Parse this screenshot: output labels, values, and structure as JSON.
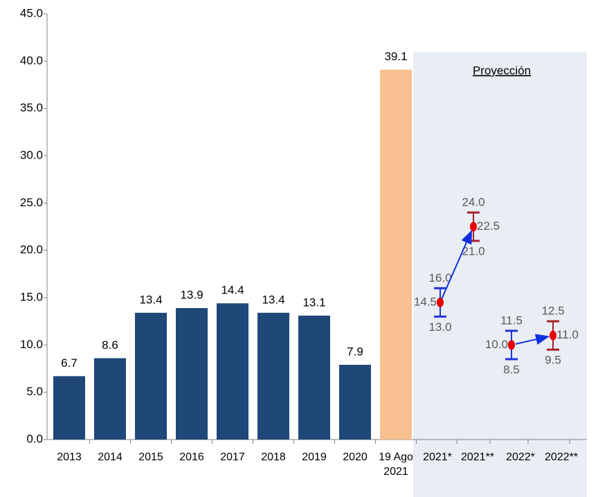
{
  "chart_data": {
    "type": "bar",
    "categories": [
      "2013",
      "2014",
      "2015",
      "2016",
      "2017",
      "2018",
      "2019",
      "2020",
      "19 Ago 2021"
    ],
    "values": [
      6.7,
      8.6,
      13.4,
      13.9,
      14.4,
      13.4,
      13.1,
      7.9,
      39.1
    ],
    "colors": [
      "#1f4778",
      "#1f4778",
      "#1f4778",
      "#1f4778",
      "#1f4778",
      "#1f4778",
      "#1f4778",
      "#1f4778",
      "#f8c090"
    ],
    "ylim": [
      0,
      45
    ],
    "yticks": [
      {
        "value": 0,
        "label": "0.0"
      },
      {
        "value": 5,
        "label": "5.0"
      },
      {
        "value": 10,
        "label": "10.0"
      },
      {
        "value": 15,
        "label": "15.0"
      },
      {
        "value": 20,
        "label": "20.0"
      },
      {
        "value": 25,
        "label": "25.0"
      },
      {
        "value": 30,
        "label": "30.0"
      },
      {
        "value": 35,
        "label": "35.0"
      },
      {
        "value": 40,
        "label": "40.0"
      },
      {
        "value": 45,
        "label": "45.0"
      }
    ],
    "projection": {
      "title": "Proyección",
      "categories": [
        "2021*",
        "2021**",
        "2022*",
        "2022**"
      ],
      "values": [
        14.5,
        22.5,
        10.0,
        11.0
      ],
      "value_labels": [
        "14.5",
        "22.5",
        "10.0",
        "11.0"
      ],
      "low": [
        13.0,
        21.0,
        8.5,
        9.5
      ],
      "low_labels": [
        "13.0",
        "21.0",
        "8.5",
        "9.5"
      ],
      "high": [
        16.0,
        24.0,
        11.5,
        12.5
      ],
      "high_labels": [
        "16.0",
        "24.0",
        "11.5",
        "12.5"
      ],
      "colors": [
        "#2233dd",
        "#a8202a",
        "#2233dd",
        "#a8202a"
      ],
      "marker_color": "#e80000"
    }
  }
}
